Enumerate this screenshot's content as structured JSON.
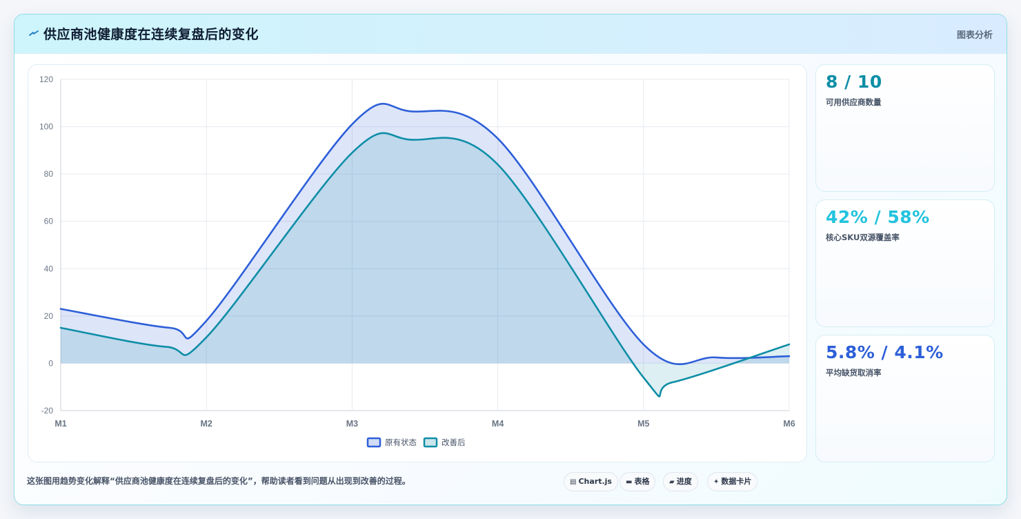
{
  "header": {
    "title": "供应商池健康度在连续复盘后的变化",
    "title_icon": "lightning-icon",
    "right_label": "图表分析"
  },
  "stats": [
    {
      "value": "8 / 10",
      "label": "可用供应商数量",
      "color": "#0e8ea6"
    },
    {
      "value": "42% / 58%",
      "label": "核心SKU双源覆盖率",
      "color": "#22c3dd"
    },
    {
      "value": "5.8% / 4.1%",
      "label": "平均缺货取消率",
      "color": "#2d5fd8"
    }
  ],
  "footer": {
    "note": "这张图用趋势变化解释“供应商池健康度在连续复盘后的变化”，帮助读者看到问题从出现到改善的过程。",
    "chips": [
      {
        "icon": "chart-icon",
        "glyph": "▤",
        "label": "Chart.js"
      },
      {
        "icon": "table-icon",
        "glyph": "▬",
        "label": "表格"
      },
      {
        "icon": "progress-icon",
        "glyph": "▰",
        "label": "进度"
      },
      {
        "icon": "sparkle-icon",
        "glyph": "✦",
        "label": "数据卡片"
      }
    ]
  },
  "chart_data": {
    "type": "area",
    "categories": [
      "M1",
      "M2",
      "M3",
      "M4",
      "M5",
      "M6"
    ],
    "x": [
      1,
      2,
      3,
      4,
      5,
      6
    ],
    "ylim": [
      -20,
      120
    ],
    "yticks": [
      -20,
      0,
      20,
      40,
      60,
      80,
      100,
      120
    ],
    "grid": true,
    "legend_position": "bottom",
    "series": [
      {
        "name": "原有状态",
        "color": "#2d5fd8",
        "fill": "rgba(45,95,216,0.16)",
        "points": [
          [
            1,
            23
          ],
          [
            1.75,
            15
          ],
          [
            2,
            18
          ],
          [
            3,
            101
          ],
          [
            3.4,
            106.5
          ],
          [
            4,
            95
          ],
          [
            5,
            8
          ],
          [
            5.5,
            2.5
          ],
          [
            6,
            3
          ]
        ]
      },
      {
        "name": "改善后",
        "color": "#0e8ea6",
        "fill": "rgba(14,142,166,0.14)",
        "points": [
          [
            1,
            15
          ],
          [
            1.72,
            7
          ],
          [
            2,
            11
          ],
          [
            3,
            89
          ],
          [
            3.4,
            94.5
          ],
          [
            4,
            84
          ],
          [
            5,
            -6
          ],
          [
            5.2,
            -8
          ],
          [
            6,
            8
          ]
        ]
      }
    ]
  }
}
